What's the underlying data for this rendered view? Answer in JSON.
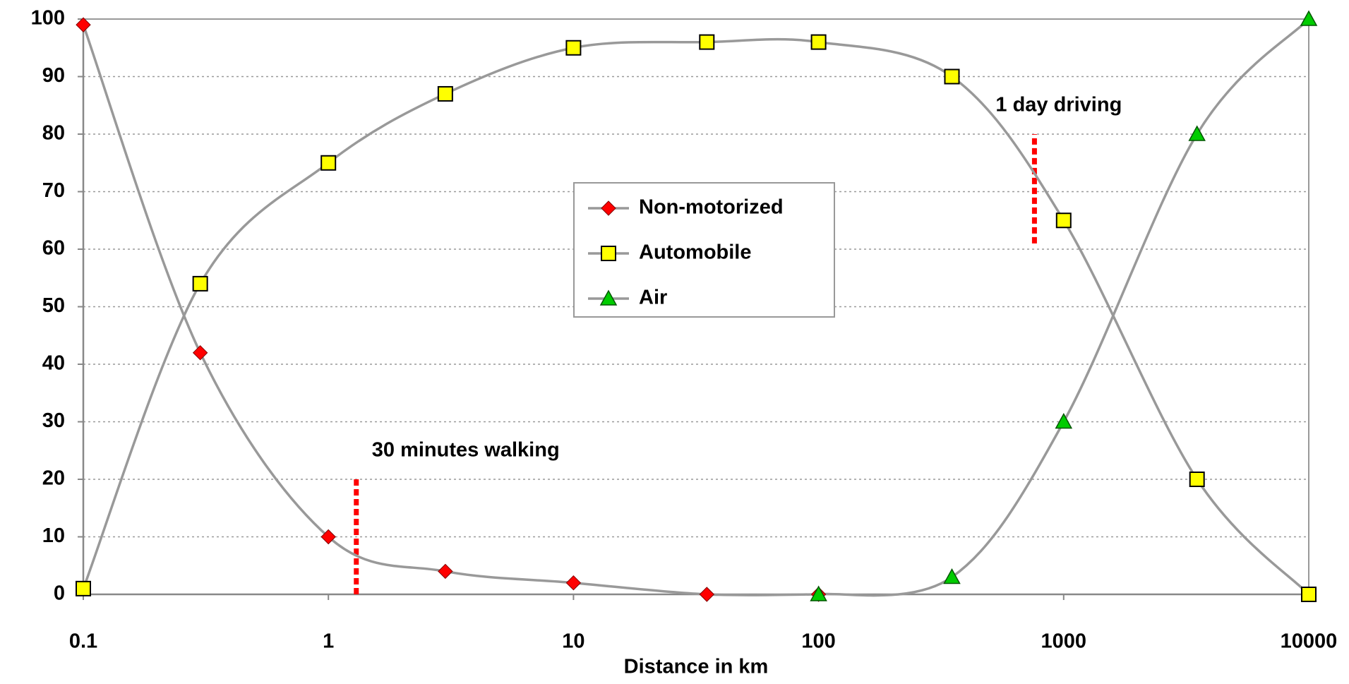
{
  "chart_data": {
    "type": "line",
    "x_label": "Distance in km",
    "x": [
      0.1,
      0.3,
      1,
      3,
      10,
      35,
      100,
      350,
      1000,
      3500,
      10000
    ],
    "series": [
      {
        "name": "Non-motorized",
        "color": "#ff0000",
        "marker": "diamond",
        "values": [
          99,
          42,
          10,
          4,
          2,
          0,
          0,
          null,
          null,
          null,
          null
        ]
      },
      {
        "name": "Automobile",
        "color": "#ffff00",
        "marker": "square",
        "values": [
          1,
          54,
          75,
          87,
          95,
          96,
          96,
          90,
          65,
          20,
          0
        ]
      },
      {
        "name": "Air",
        "color": "#00cc00",
        "marker": "triangle",
        "values": [
          null,
          null,
          null,
          null,
          null,
          null,
          0,
          3,
          30,
          80,
          100
        ]
      }
    ],
    "xscale": "log",
    "xlim": [
      0.1,
      10000
    ],
    "xticks": [
      0.1,
      1,
      10,
      100,
      1000,
      10000
    ],
    "ylim": [
      0,
      100
    ],
    "yticks": [
      0,
      10,
      20,
      30,
      40,
      50,
      60,
      70,
      80,
      90,
      100
    ],
    "grid": true,
    "legend": "center",
    "annotations": [
      {
        "text": "30 minutes walking",
        "x": 1.3,
        "y": [
          0,
          20
        ]
      },
      {
        "text": "1 day driving",
        "x": 760,
        "y": [
          61,
          80
        ]
      }
    ]
  }
}
